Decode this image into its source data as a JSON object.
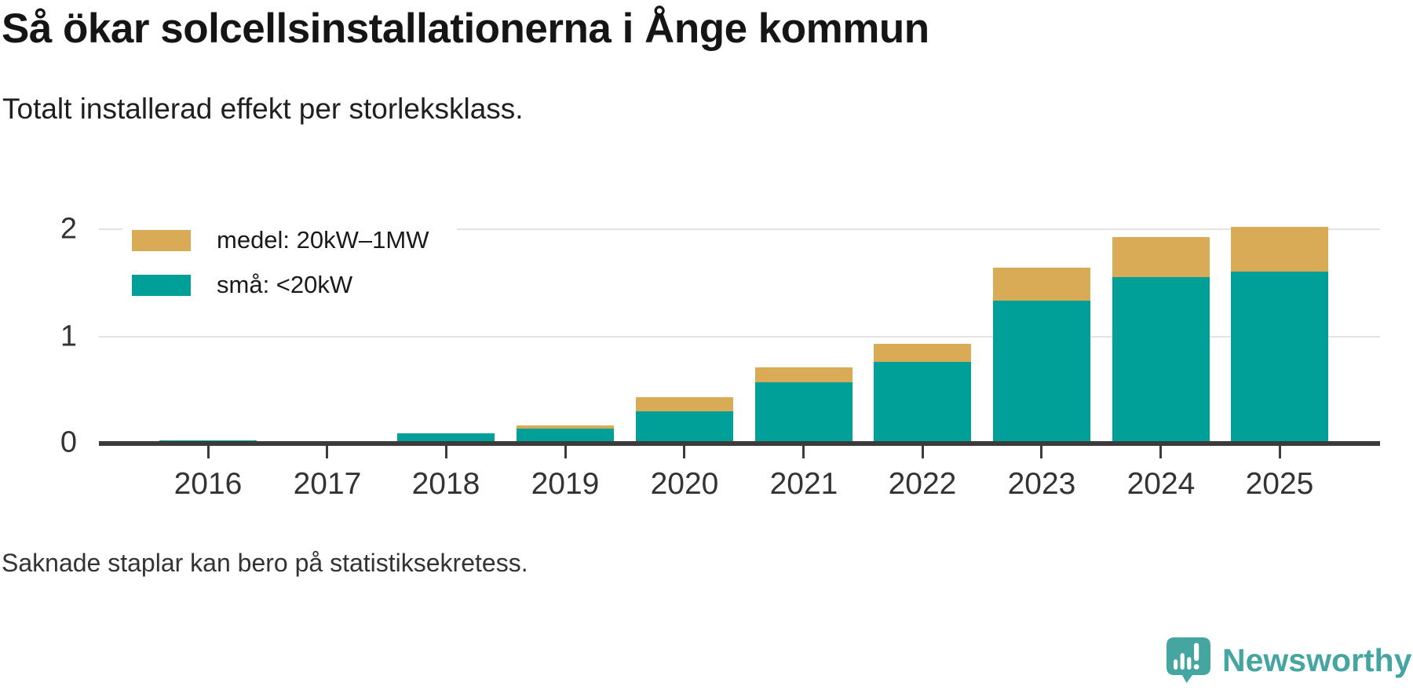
{
  "header": {
    "title": "Så ökar solcellsinstallationerna i Ånge kommun",
    "subtitle": "Totalt installerad effekt per storleksklass."
  },
  "legend": {
    "items": [
      {
        "label": "medel: 20kW–1MW",
        "color": "#d9ab57"
      },
      {
        "label": "små: <20kW",
        "color": "#00a099"
      }
    ]
  },
  "chart_data": {
    "type": "bar",
    "stacked": true,
    "title": "Så ökar solcellsinstallationerna i Ånge kommun",
    "subtitle": "Totalt installerad effekt per storleksklass.",
    "xlabel": "",
    "ylabel": "",
    "categories": [
      "2016",
      "2017",
      "2018",
      "2019",
      "2020",
      "2021",
      "2022",
      "2023",
      "2024",
      "2025"
    ],
    "series": [
      {
        "name": "små: <20kW",
        "color": "#00a099",
        "values": [
          0.04,
          0.03,
          0.1,
          0.15,
          0.31,
          0.58,
          0.77,
          1.34,
          1.56,
          1.61
        ]
      },
      {
        "name": "medel: 20kW–1MW",
        "color": "#d9ab57",
        "values": [
          0,
          0,
          0,
          0.03,
          0.13,
          0.14,
          0.17,
          0.31,
          0.37,
          0.42
        ]
      }
    ],
    "ylim": [
      0,
      2.05
    ],
    "yticks": [
      0,
      1,
      2
    ],
    "grid": "horizontal",
    "legend_position": "top-left"
  },
  "footer": {
    "note": "Saknade staplar kan bero på statistiksekretess."
  },
  "branding": {
    "name": "Newsworthy",
    "color": "#45a5a0",
    "icon": "newsworthy-bar-chart-bubble-icon"
  },
  "colors": {
    "axis": "#3b3b3b",
    "grid": "#e3e3e3",
    "text": "#333333",
    "title_text": "#151515"
  }
}
